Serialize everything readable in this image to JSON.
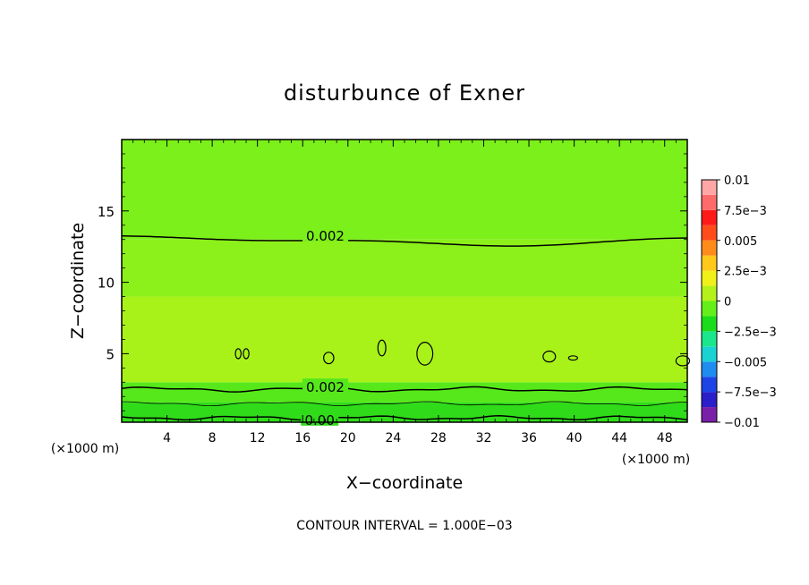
{
  "chart_data": {
    "type": "heatmap",
    "title": "disturbunce of Exner",
    "xlabel": "X−coordinate",
    "ylabel": "Z−coordinate",
    "x_unit": "(×1000 m)",
    "x_unit_right": "(×1000 m)",
    "footer": "CONTOUR INTERVAL = 1.000E−03",
    "xlim": [
      0,
      50
    ],
    "ylim": [
      0.2,
      20
    ],
    "x_ticks": [
      4,
      8,
      12,
      16,
      20,
      24,
      28,
      32,
      36,
      40,
      44,
      48
    ],
    "y_ticks": [
      5,
      10,
      15
    ],
    "y_tick_labels": [
      "5",
      "10",
      "15"
    ],
    "colorbar": {
      "min": -0.01,
      "max": 0.01,
      "levels": [
        -0.01,
        -0.0075,
        -0.005,
        -0.0025,
        0,
        0.0025,
        0.005,
        0.0075,
        0.01
      ],
      "labels": [
        "−0.01",
        "−7.5e−3",
        "−0.005",
        "−2.5e−3",
        "0",
        "2.5e−3",
        "0.005",
        "7.5e−3",
        "0.01"
      ],
      "colors": [
        "#7a1fa8",
        "#2a1fc8",
        "#1f44e6",
        "#1f8cf0",
        "#1ad2d2",
        "#1ae68c",
        "#1adc1a",
        "#64ee1a",
        "#b4f01a",
        "#f0f01a",
        "#ffc81a",
        "#ff8c1a",
        "#ff4c1a",
        "#ff1a1a",
        "#ff6b6b",
        "#ffa6a6"
      ]
    },
    "contour_labels": [
      {
        "text": "0.002",
        "x": 18.0,
        "z": 13.3
      },
      {
        "text": "0.002",
        "x": 18.0,
        "z": 2.7
      },
      {
        "text": "0.00",
        "x": 17.5,
        "z": 0.4
      }
    ],
    "bands": [
      {
        "value": 0.0005,
        "color": "#30dc1a",
        "z_from": 0.2,
        "z_to": 1.6
      },
      {
        "value": 0.0015,
        "color": "#56e81a",
        "z_from": 1.6,
        "z_to": 3.0
      },
      {
        "value": 0.0025,
        "color": "#a8f21a",
        "z_from": 3.0,
        "z_to": 9.0
      },
      {
        "value": 0.0022,
        "color": "#8cf01a",
        "z_from": 9.0,
        "z_to": 13.0
      },
      {
        "value": 0.0018,
        "color": "#7cf01a",
        "z_from": 13.0,
        "z_to": 20.0
      }
    ]
  }
}
